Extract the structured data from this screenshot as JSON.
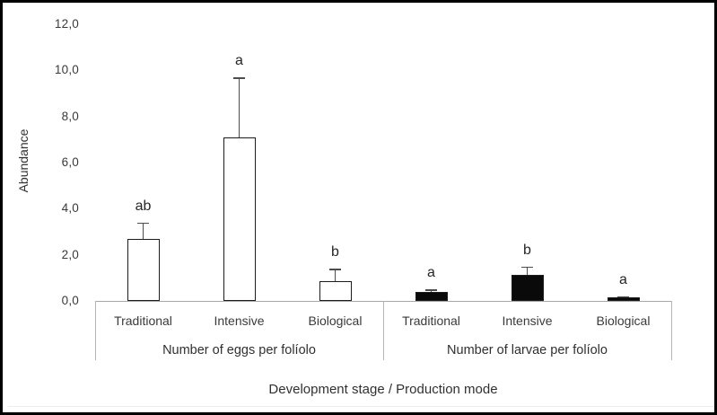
{
  "figure": {
    "background": "#ffffff",
    "frame_color": "#000000"
  },
  "chart_data": {
    "type": "bar",
    "title": "",
    "ylabel": "Abundance",
    "xlabel": "Development stage / Production mode",
    "ylim": [
      0,
      12
    ],
    "ytick_values": [
      0,
      2,
      4,
      6,
      8,
      10,
      12
    ],
    "ytick_labels": [
      "0,0",
      "2,0",
      "4,0",
      "6,0",
      "8,0",
      "10,0",
      "12,0"
    ],
    "decimal_separator": ",",
    "grid": false,
    "legend_position": "none",
    "error_bars": "upper, with cap",
    "axis_line_color": "#a8a8a8",
    "groups": [
      {
        "label": "Number of eggs per folíolo",
        "fill": "#ffffff",
        "outline": "#1c1c1c",
        "bars": [
          {
            "category": "Traditional",
            "value": 2.7,
            "error_plus": 0.7,
            "sig_letter": "ab"
          },
          {
            "category": "Intensive",
            "value": 7.1,
            "error_plus": 2.6,
            "sig_letter": "a"
          },
          {
            "category": "Biological",
            "value": 0.85,
            "error_plus": 0.55,
            "sig_letter": "b"
          }
        ]
      },
      {
        "label": "Number of larvae per folíolo",
        "fill": "#0a0a0a",
        "outline": "#1c1c1c",
        "bars": [
          {
            "category": "Traditional",
            "value": 0.4,
            "error_plus": 0.1,
            "sig_letter": "a"
          },
          {
            "category": "Intensive",
            "value": 1.15,
            "error_plus": 0.35,
            "sig_letter": "b"
          },
          {
            "category": "Biological",
            "value": 0.15,
            "error_plus": 0.05,
            "sig_letter": "a"
          }
        ]
      }
    ]
  }
}
